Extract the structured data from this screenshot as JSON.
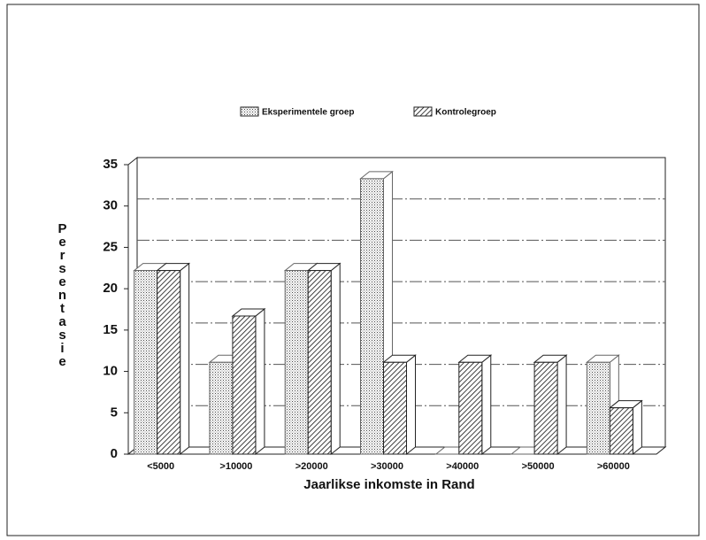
{
  "chart_data": {
    "type": "bar3d",
    "legend_position": "top",
    "ylabel": "Persentasie",
    "xlabel": "Jaarlikse inkomste in Rand",
    "categories": [
      "<5000",
      ">10000",
      ">20000",
      ">30000",
      ">40000",
      ">50000",
      ">60000"
    ],
    "series": [
      {
        "name": "Eksperimentele groep",
        "color": "#666666",
        "values": [
          22.2,
          11.1,
          22.2,
          33.3,
          0,
          0,
          11.1
        ]
      },
      {
        "name": "Kontrolegroep",
        "color": "#222222",
        "values": [
          22.2,
          16.7,
          22.2,
          11.1,
          11.1,
          11.1,
          5.6
        ]
      }
    ],
    "ylim": [
      0,
      35
    ],
    "yticks": [
      0,
      5,
      10,
      15,
      20,
      25,
      30,
      35
    ],
    "grid": true
  }
}
